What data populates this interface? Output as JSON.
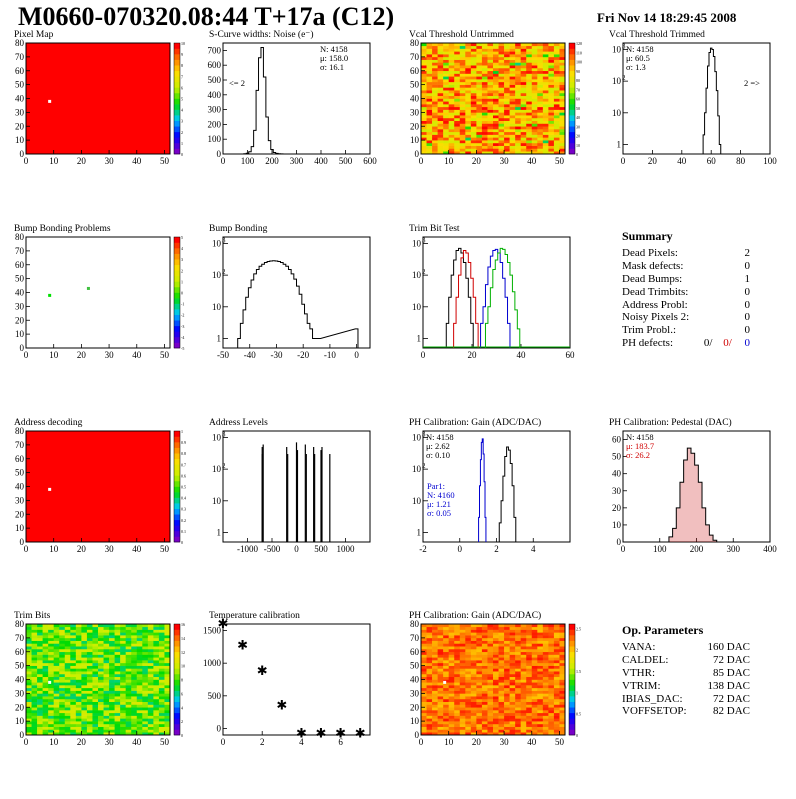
{
  "header": {
    "title": "M0660-070320.08:44 T+17a (C12)",
    "date": "Fri Nov 14 18:29:45 2008"
  },
  "summary": {
    "title": "Summary",
    "rows": [
      {
        "label": "Dead Pixels:",
        "value": "2"
      },
      {
        "label": "Mask defects:",
        "value": "0"
      },
      {
        "label": "Dead Bumps:",
        "value": "1"
      },
      {
        "label": "Dead Trimbits:",
        "value": "0"
      },
      {
        "label": "Address Probl:",
        "value": "0"
      },
      {
        "label": "Noisy Pixels 2:",
        "value": "0"
      },
      {
        "label": "Trim Probl.:",
        "value": "0"
      }
    ],
    "ph_label": "PH defects:",
    "ph_values": [
      "0/",
      "0/",
      "0"
    ],
    "ph_colors": [
      "#000000",
      "#d00000",
      "#0000d0"
    ]
  },
  "op_params": {
    "title": "Op. Parameters",
    "rows": [
      {
        "label": "VANA:",
        "value": "160 DAC"
      },
      {
        "label": "CALDEL:",
        "value": "72 DAC"
      },
      {
        "label": "VTHR:",
        "value": "85 DAC"
      },
      {
        "label": "VTRIM:",
        "value": "138 DAC"
      },
      {
        "label": "IBIAS_DAC:",
        "value": "72 DAC"
      },
      {
        "label": "VOFFSETOP:",
        "value": "82 DAC"
      }
    ]
  },
  "chart_data": [
    {
      "id": "pixel_map",
      "type": "heatmap",
      "title": "Pixel Map",
      "xlim": [
        0,
        52
      ],
      "ylim": [
        0,
        80
      ],
      "xticks": [
        0,
        10,
        20,
        30,
        40,
        50
      ],
      "yticks": [
        0,
        10,
        20,
        30,
        40,
        50,
        60,
        70,
        80
      ],
      "zlim": [
        0,
        10
      ],
      "zticks": [
        0,
        1,
        2,
        3,
        4,
        5,
        6,
        7,
        8,
        9,
        10
      ],
      "fill": "uniform",
      "fill_value": 10,
      "special": [
        {
          "x": 8,
          "y": 38,
          "color": "#ffffff"
        }
      ]
    },
    {
      "id": "scurve",
      "type": "histogram",
      "title": "S-Curve widths: Noise (e⁻)",
      "xlim": [
        0,
        600
      ],
      "xticks": [
        0,
        100,
        200,
        300,
        400,
        500,
        600
      ],
      "ylim": [
        0,
        750
      ],
      "yticks": [
        0,
        100,
        200,
        300,
        400,
        500,
        600,
        700
      ],
      "logy": false,
      "x": [
        90,
        100,
        110,
        120,
        130,
        140,
        150,
        160,
        170,
        180,
        190,
        200,
        210,
        220,
        230,
        240
      ],
      "y": [
        2,
        5,
        15,
        50,
        160,
        430,
        650,
        720,
        520,
        250,
        90,
        30,
        10,
        4,
        2,
        1
      ],
      "stats": [
        "N: 4158",
        "μ: 158.0",
        "σ: 16.1"
      ],
      "annotation": "<= 2"
    },
    {
      "id": "vcal_untrimmed",
      "type": "heatmap",
      "title": "Vcal Threshold Untrimmed",
      "xlim": [
        0,
        52
      ],
      "ylim": [
        0,
        80
      ],
      "xticks": [
        0,
        10,
        20,
        30,
        40,
        50
      ],
      "yticks": [
        0,
        10,
        20,
        30,
        40,
        50,
        60,
        70,
        80
      ],
      "zlim": [
        0,
        120
      ],
      "zticks": [
        0,
        10,
        20,
        30,
        40,
        50,
        60,
        70,
        80,
        90,
        100,
        110,
        120
      ],
      "fill": "noise_hot",
      "special": []
    },
    {
      "id": "vcal_trimmed",
      "type": "histogram",
      "title": "Vcal Threshold Trimmed",
      "xlim": [
        0,
        100
      ],
      "xticks": [
        0,
        20,
        40,
        60,
        80,
        100
      ],
      "logy": true,
      "ydecades": [
        1,
        10,
        100,
        1000
      ],
      "x": [
        55,
        56,
        57,
        58,
        59,
        60,
        61,
        62,
        63,
        64,
        65,
        66
      ],
      "y": [
        2,
        10,
        60,
        300,
        800,
        1100,
        1000,
        600,
        200,
        50,
        8,
        1
      ],
      "stats": [
        "N: 4158",
        "μ: 60.5",
        "σ:  1.3"
      ],
      "annotation": "2 =>"
    },
    {
      "id": "bump_problems",
      "type": "heatmap",
      "title": "Bump Bonding Problems",
      "xlim": [
        0,
        52
      ],
      "ylim": [
        0,
        80
      ],
      "xticks": [
        0,
        10,
        20,
        30,
        40,
        50
      ],
      "yticks": [
        0,
        10,
        20,
        30,
        40,
        50,
        60,
        70,
        80
      ],
      "zlim": [
        -5,
        5
      ],
      "zticks": [
        -5,
        -4,
        -3,
        -2,
        -1,
        0,
        1,
        2,
        3,
        4,
        5
      ],
      "fill": "empty",
      "special": [
        {
          "x": 8,
          "y": 38,
          "color": "#00e000"
        },
        {
          "x": 22,
          "y": 43,
          "color": "#40c040"
        }
      ]
    },
    {
      "id": "bump_bonding",
      "type": "histogram",
      "title": "Bump Bonding",
      "xlim": [
        -50,
        5
      ],
      "xticks": [
        -50,
        -40,
        -30,
        -20,
        -10,
        0
      ],
      "logy": true,
      "ydecades": [
        1,
        10,
        100,
        1000
      ],
      "x": [
        -44,
        -43,
        -42,
        -41,
        -40,
        -39,
        -38,
        -37,
        -36,
        -35,
        -34,
        -33,
        -32,
        -31,
        -30,
        -29,
        -28,
        -27,
        -26,
        -25,
        -24,
        -23,
        -22,
        -21,
        -20,
        -19,
        -18,
        -17,
        -16,
        -15,
        -14,
        0
      ],
      "y": [
        1,
        3,
        8,
        20,
        40,
        70,
        110,
        150,
        190,
        220,
        250,
        270,
        280,
        285,
        280,
        270,
        250,
        220,
        190,
        150,
        110,
        75,
        45,
        25,
        12,
        6,
        3,
        2,
        1,
        1,
        1,
        2
      ]
    },
    {
      "id": "trim_bit",
      "type": "histogram",
      "title": "Trim Bit Test",
      "xlim": [
        0,
        60
      ],
      "xticks": [
        0,
        20,
        40,
        60
      ],
      "logy": true,
      "ydecades": [
        1,
        10,
        100,
        1000
      ],
      "series": [
        {
          "name": "",
          "color": "#000000",
          "x": [
            10,
            11,
            12,
            13,
            14,
            15,
            16,
            17,
            18,
            19,
            20
          ],
          "y": [
            3,
            20,
            100,
            300,
            600,
            700,
            500,
            250,
            80,
            20,
            3
          ]
        },
        {
          "name": "",
          "color": "#d00000",
          "x": [
            13,
            14,
            15,
            16,
            17,
            18,
            19,
            20,
            21,
            22
          ],
          "y": [
            3,
            20,
            100,
            350,
            600,
            500,
            250,
            80,
            20,
            3
          ]
        },
        {
          "name": "",
          "color": "#0000d0",
          "x": [
            24,
            25,
            26,
            27,
            28,
            29,
            30,
            31,
            32,
            33,
            34,
            35
          ],
          "y": [
            3,
            10,
            50,
            180,
            400,
            600,
            650,
            500,
            250,
            80,
            20,
            3
          ]
        },
        {
          "name": "",
          "color": "#00b000",
          "x": [
            26,
            27,
            28,
            29,
            30,
            31,
            32,
            33,
            34,
            35,
            36,
            37,
            38,
            39
          ],
          "y": [
            3,
            10,
            40,
            150,
            300,
            500,
            700,
            650,
            450,
            250,
            100,
            30,
            8,
            2
          ]
        }
      ]
    },
    {
      "id": "address_decoding",
      "type": "heatmap",
      "title": "Address decoding",
      "xlim": [
        0,
        52
      ],
      "ylim": [
        0,
        80
      ],
      "xticks": [
        0,
        10,
        20,
        30,
        40,
        50
      ],
      "yticks": [
        0,
        10,
        20,
        30,
        40,
        50,
        60,
        70,
        80
      ],
      "zlim": [
        0,
        1
      ],
      "zticks": [
        0,
        0.1,
        0.2,
        0.3,
        0.4,
        0.5,
        0.6,
        0.7,
        0.8,
        0.9,
        1
      ],
      "fill": "uniform",
      "fill_value": 1,
      "special": [
        {
          "x": 8,
          "y": 38,
          "color": "#ffffff"
        }
      ]
    },
    {
      "id": "address_levels",
      "type": "histogram",
      "title": "Address Levels",
      "xlim": [
        -1500,
        1500
      ],
      "xticks": [
        -1000,
        -500,
        0,
        500,
        1000
      ],
      "logy": true,
      "ydecades": [
        1,
        10,
        100,
        1000
      ],
      "x": [
        -700,
        -700,
        -680,
        -200,
        -180,
        0,
        20,
        180,
        200,
        350,
        370,
        500,
        520,
        680
      ],
      "y": [
        500,
        300,
        600,
        500,
        300,
        700,
        400,
        600,
        300,
        500,
        300,
        400,
        500,
        300
      ]
    },
    {
      "id": "ph_gain",
      "type": "histogram",
      "title": "PH Calibration: Gain (ADC/DAC)",
      "xlim": [
        -2,
        6
      ],
      "xticks": [
        -2,
        0,
        2,
        4
      ],
      "logy": true,
      "ydecades": [
        1,
        10,
        100,
        1000
      ],
      "series": [
        {
          "name": "",
          "color": "#000000",
          "x": [
            2.2,
            2.3,
            2.4,
            2.5,
            2.6,
            2.7,
            2.8,
            2.9,
            3.0
          ],
          "y": [
            2,
            10,
            60,
            250,
            500,
            400,
            150,
            30,
            3
          ]
        },
        {
          "name": "",
          "color": "#0000d0",
          "x": [
            1.05,
            1.1,
            1.15,
            1.2,
            1.25,
            1.3,
            1.35,
            1.4
          ],
          "y": [
            3,
            30,
            200,
            700,
            900,
            300,
            40,
            3
          ]
        }
      ],
      "stats": [
        "N: 4158",
        "μ: 2.62",
        "σ: 0.10"
      ],
      "stats2": [
        "Par1:",
        "N: 4160",
        "μ: 1.21",
        "σ: 0.05"
      ]
    },
    {
      "id": "ph_pedestal",
      "type": "histogram",
      "title": "PH Calibration: Pedestal (DAC)",
      "xlim": [
        0,
        400
      ],
      "xticks": [
        0,
        100,
        200,
        300,
        400
      ],
      "ylim": [
        0,
        65
      ],
      "yticks": [
        0,
        10,
        20,
        30,
        40,
        50,
        60
      ],
      "logy": false,
      "x": [
        130,
        140,
        150,
        160,
        170,
        180,
        190,
        200,
        210,
        220,
        230,
        240,
        250
      ],
      "y": [
        3,
        8,
        20,
        35,
        48,
        55,
        52,
        45,
        35,
        20,
        10,
        4,
        1
      ],
      "stats": [
        "N: 4158",
        "μ: 183.7",
        "σ: 26.2"
      ]
    },
    {
      "id": "trim_bits",
      "type": "heatmap",
      "title": "Trim Bits",
      "xlim": [
        0,
        52
      ],
      "ylim": [
        0,
        80
      ],
      "xticks": [
        0,
        10,
        20,
        30,
        40,
        50
      ],
      "yticks": [
        0,
        10,
        20,
        30,
        40,
        50,
        60,
        70,
        80
      ],
      "zlim": [
        0,
        16
      ],
      "zticks": [
        0,
        2,
        4,
        6,
        8,
        10,
        12,
        14,
        16
      ],
      "fill": "noise_green",
      "special": [
        {
          "x": 8,
          "y": 38,
          "color": "#ffffff"
        }
      ]
    },
    {
      "id": "temperature",
      "type": "scatter",
      "title": "Temperature calibration",
      "xlim": [
        0,
        7.5
      ],
      "xticks": [
        0,
        2,
        4,
        6
      ],
      "ylim": [
        -100,
        1600
      ],
      "yticks": [
        0,
        500,
        1000,
        1500
      ],
      "x": [
        0,
        1,
        2,
        3,
        4,
        5,
        6,
        7
      ],
      "y": [
        1600,
        1270,
        880,
        350,
        -80,
        -80,
        -80,
        -80
      ]
    },
    {
      "id": "ph_gain_map",
      "type": "heatmap",
      "title": "PH Calibration: Gain (ADC/DAC)",
      "xlim": [
        0,
        52
      ],
      "ylim": [
        0,
        80
      ],
      "xticks": [
        0,
        10,
        20,
        30,
        40,
        50
      ],
      "yticks": [
        0,
        10,
        20,
        30,
        40,
        50,
        60,
        70,
        80
      ],
      "zlim": [
        0,
        2.6
      ],
      "zticks": [
        0,
        0.5,
        1,
        1.5,
        2,
        2.5
      ],
      "fill": "noise_orange",
      "special": [
        {
          "x": 8,
          "y": 38,
          "color": "#ffffff"
        }
      ]
    }
  ]
}
